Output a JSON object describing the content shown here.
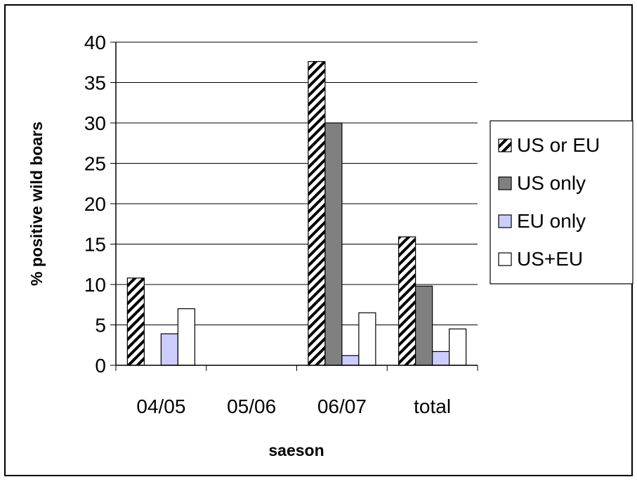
{
  "chart_data": {
    "type": "bar",
    "title": "",
    "xlabel": "saeson",
    "ylabel": "% positive wild boars",
    "ylim": [
      0,
      40
    ],
    "yticks": [
      0,
      5,
      10,
      15,
      20,
      25,
      30,
      35,
      40
    ],
    "categories": [
      "04/05",
      "05/06",
      "06/07",
      "total"
    ],
    "series": [
      {
        "name": "US or EU",
        "values": [
          10.8,
          0,
          37.6,
          15.9
        ],
        "fill": "hatch",
        "color": "#000000"
      },
      {
        "name": "US only",
        "values": [
          0,
          0,
          30.0,
          9.8
        ],
        "fill": "solid",
        "color": "#808080"
      },
      {
        "name": "EU only",
        "values": [
          3.9,
          0,
          1.2,
          1.7
        ],
        "fill": "solid",
        "color": "#ccccff"
      },
      {
        "name": "US+EU",
        "values": [
          7.0,
          0,
          6.5,
          4.5
        ],
        "fill": "solid",
        "color": "#ffffff"
      }
    ],
    "grid": true,
    "legend_position": "right"
  }
}
